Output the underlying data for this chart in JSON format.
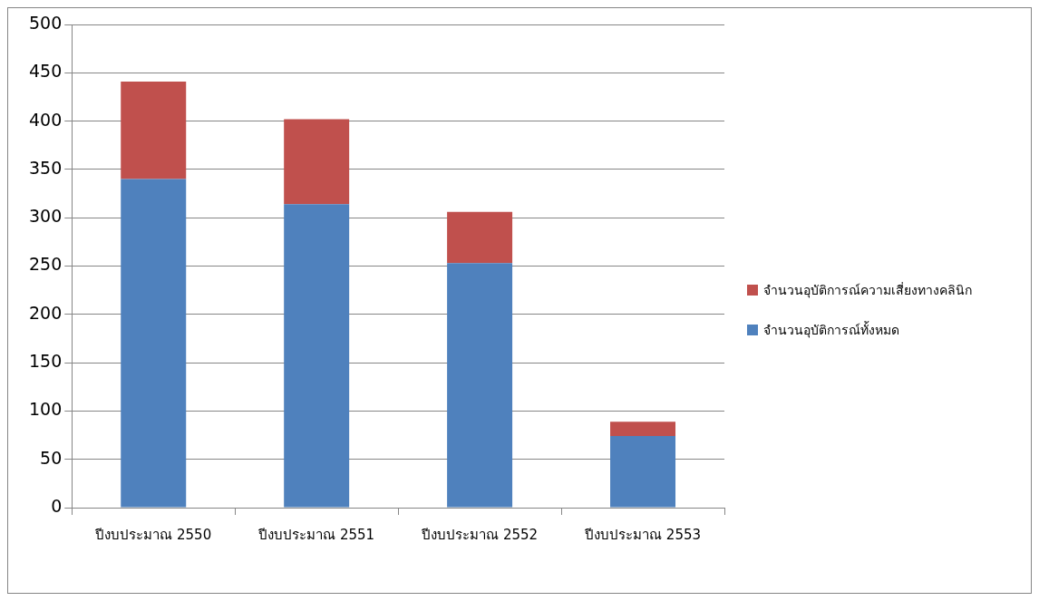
{
  "chart_data": {
    "type": "bar",
    "stacked": true,
    "categories": [
      "ปีงบประมาณ 2550",
      "ปีงบประมาณ 2551",
      "ปีงบประมาณ 2552",
      "ปีงบประมาณ 2553"
    ],
    "series": [
      {
        "name": "จำนวนอุบัติการณ์ทั้งหมด",
        "color": "#4f81bd",
        "values": [
          340,
          314,
          253,
          74
        ]
      },
      {
        "name": "จำนวนอุบัติการณ์ความเสี่ยงทางคลินิก",
        "color": "#c0504d",
        "values": [
          101,
          88,
          53,
          15
        ]
      }
    ],
    "ylim": [
      0,
      500
    ],
    "yticks": [
      0,
      50,
      100,
      150,
      200,
      250,
      300,
      350,
      400,
      450,
      500
    ],
    "grid": "y",
    "legend": "right"
  }
}
